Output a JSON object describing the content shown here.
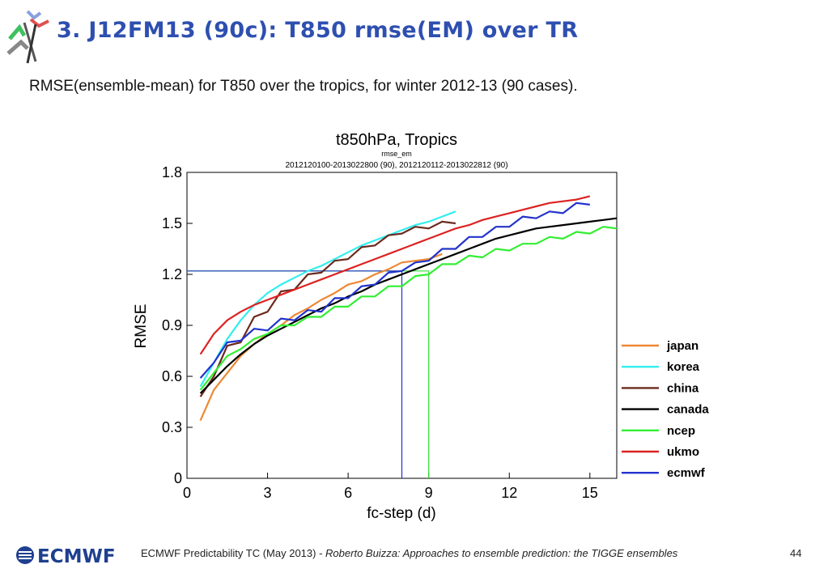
{
  "slide": {
    "title": "3. J12FM13 (90c): T850 rmse(EM) over TR",
    "subtitle": "RMSE(ensemble-mean) for T850 over the tropics, for winter 2012-13 (90 cases)."
  },
  "footer": {
    "logo_text": "ECMWF",
    "prefix": "ECMWF Predictability TC (May 2013) -",
    "citation": "Roberto Buizza: Approaches to ensemble prediction: the TIGGE ensembles",
    "page": "44"
  },
  "colors": {
    "title": "#2e4fb0",
    "logo": "#1f3f8f"
  },
  "chart_data": {
    "type": "line",
    "title": "t850hPa,  Tropics",
    "subtitle": "rmse_em",
    "period": "2012120100-2013022800 (90), 2012120112-2013022812 (90)",
    "xlabel": "fc-step (d)",
    "ylabel": "RMSE",
    "xlim": [
      0,
      16
    ],
    "ylim": [
      0,
      1.8
    ],
    "xticks": [
      "0",
      "3",
      "6",
      "9",
      "12",
      "15"
    ],
    "yticks": [
      "0",
      "0.3",
      "0.6",
      "0.9",
      "1.2",
      "1.5",
      "1.8"
    ],
    "xtick_values": [
      0,
      3,
      6,
      9,
      12,
      15
    ],
    "ytick_values": [
      0,
      0.3,
      0.6,
      0.9,
      1.2,
      1.5,
      1.8
    ],
    "grid": false,
    "legend_position": "right",
    "reference_lines": [
      {
        "color": "#33dd33",
        "y": 1.22,
        "x": 9.0
      },
      {
        "color": "#2233cc",
        "y": 1.22,
        "x": 8.0
      }
    ],
    "series": [
      {
        "name": "japan",
        "color": "#ee8833",
        "x": [
          0.5,
          1,
          1.5,
          2,
          2.5,
          3,
          3.5,
          4,
          4.5,
          5,
          5.5,
          6,
          6.5,
          7,
          7.5,
          8,
          8.5,
          9,
          9.5
        ],
        "y": [
          0.34,
          0.52,
          0.62,
          0.72,
          0.79,
          0.85,
          0.9,
          0.96,
          1.0,
          1.05,
          1.09,
          1.14,
          1.16,
          1.2,
          1.23,
          1.27,
          1.28,
          1.29,
          1.32
        ]
      },
      {
        "name": "korea",
        "color": "#33eeee",
        "x": [
          0.5,
          1,
          1.5,
          2,
          2.5,
          3,
          3.5,
          4,
          4.5,
          5,
          5.5,
          6,
          6.5,
          7,
          7.5,
          8,
          8.5,
          9,
          9.5,
          10
        ],
        "y": [
          0.54,
          0.68,
          0.82,
          0.93,
          1.02,
          1.09,
          1.14,
          1.18,
          1.22,
          1.25,
          1.29,
          1.33,
          1.37,
          1.4,
          1.43,
          1.46,
          1.49,
          1.51,
          1.54,
          1.57
        ]
      },
      {
        "name": "china",
        "color": "#6b2a1e",
        "x": [
          0.5,
          1,
          1.5,
          2,
          2.5,
          3,
          3.5,
          4,
          4.5,
          5,
          5.5,
          6,
          6.5,
          7,
          7.5,
          8,
          8.5,
          9,
          9.5,
          10
        ],
        "y": [
          0.48,
          0.6,
          0.78,
          0.8,
          0.95,
          0.98,
          1.1,
          1.11,
          1.2,
          1.21,
          1.28,
          1.29,
          1.36,
          1.37,
          1.43,
          1.44,
          1.48,
          1.47,
          1.51,
          1.5
        ]
      },
      {
        "name": "canada",
        "color": "#000000",
        "x": [
          0.5,
          1,
          1.5,
          2,
          2.5,
          3,
          3.5,
          4,
          4.5,
          5,
          5.5,
          6,
          6.5,
          7,
          7.5,
          8,
          8.5,
          9,
          9.5,
          10,
          10.5,
          11,
          11.5,
          12,
          12.5,
          13,
          13.5,
          14,
          14.5,
          15,
          15.5,
          16
        ],
        "y": [
          0.5,
          0.58,
          0.66,
          0.73,
          0.79,
          0.84,
          0.88,
          0.92,
          0.96,
          1.0,
          1.03,
          1.07,
          1.1,
          1.14,
          1.17,
          1.2,
          1.23,
          1.26,
          1.29,
          1.32,
          1.35,
          1.38,
          1.41,
          1.43,
          1.45,
          1.47,
          1.48,
          1.49,
          1.5,
          1.51,
          1.52,
          1.53
        ]
      },
      {
        "name": "ncep",
        "color": "#33ee33",
        "x": [
          0.5,
          1,
          1.5,
          2,
          2.5,
          3,
          3.5,
          4,
          4.5,
          5,
          5.5,
          6,
          6.5,
          7,
          7.5,
          8,
          8.5,
          9,
          9.5,
          10,
          10.5,
          11,
          11.5,
          12,
          12.5,
          13,
          13.5,
          14,
          14.5,
          15,
          15.5,
          16
        ],
        "y": [
          0.52,
          0.62,
          0.72,
          0.76,
          0.82,
          0.85,
          0.9,
          0.9,
          0.95,
          0.95,
          1.01,
          1.01,
          1.07,
          1.07,
          1.13,
          1.13,
          1.19,
          1.2,
          1.26,
          1.26,
          1.31,
          1.3,
          1.35,
          1.34,
          1.38,
          1.38,
          1.42,
          1.41,
          1.45,
          1.44,
          1.48,
          1.47
        ]
      },
      {
        "name": "ukmo",
        "color": "#dd2222",
        "x": [
          0.5,
          1,
          1.5,
          2,
          2.5,
          3,
          3.5,
          4,
          4.5,
          5,
          5.5,
          6,
          6.5,
          7,
          7.5,
          8,
          8.5,
          9,
          9.5,
          10,
          10.5,
          11,
          11.5,
          12,
          12.5,
          13,
          13.5,
          14,
          14.5,
          15
        ],
        "y": [
          0.73,
          0.85,
          0.93,
          0.98,
          1.02,
          1.05,
          1.08,
          1.11,
          1.14,
          1.17,
          1.2,
          1.23,
          1.26,
          1.29,
          1.32,
          1.35,
          1.38,
          1.41,
          1.44,
          1.47,
          1.49,
          1.52,
          1.54,
          1.56,
          1.58,
          1.6,
          1.62,
          1.63,
          1.64,
          1.66
        ]
      },
      {
        "name": "ecmwf",
        "color": "#2233cc",
        "x": [
          0.5,
          1,
          1.5,
          2,
          2.5,
          3,
          3.5,
          4,
          4.5,
          5,
          5.5,
          6,
          6.5,
          7,
          7.5,
          8,
          8.5,
          9,
          9.5,
          10,
          10.5,
          11,
          11.5,
          12,
          12.5,
          13,
          13.5,
          14,
          14.5,
          15
        ],
        "y": [
          0.59,
          0.68,
          0.8,
          0.81,
          0.88,
          0.87,
          0.94,
          0.93,
          0.99,
          0.98,
          1.06,
          1.06,
          1.13,
          1.14,
          1.21,
          1.22,
          1.27,
          1.28,
          1.35,
          1.35,
          1.42,
          1.42,
          1.48,
          1.48,
          1.54,
          1.53,
          1.57,
          1.56,
          1.62,
          1.61
        ]
      }
    ]
  }
}
